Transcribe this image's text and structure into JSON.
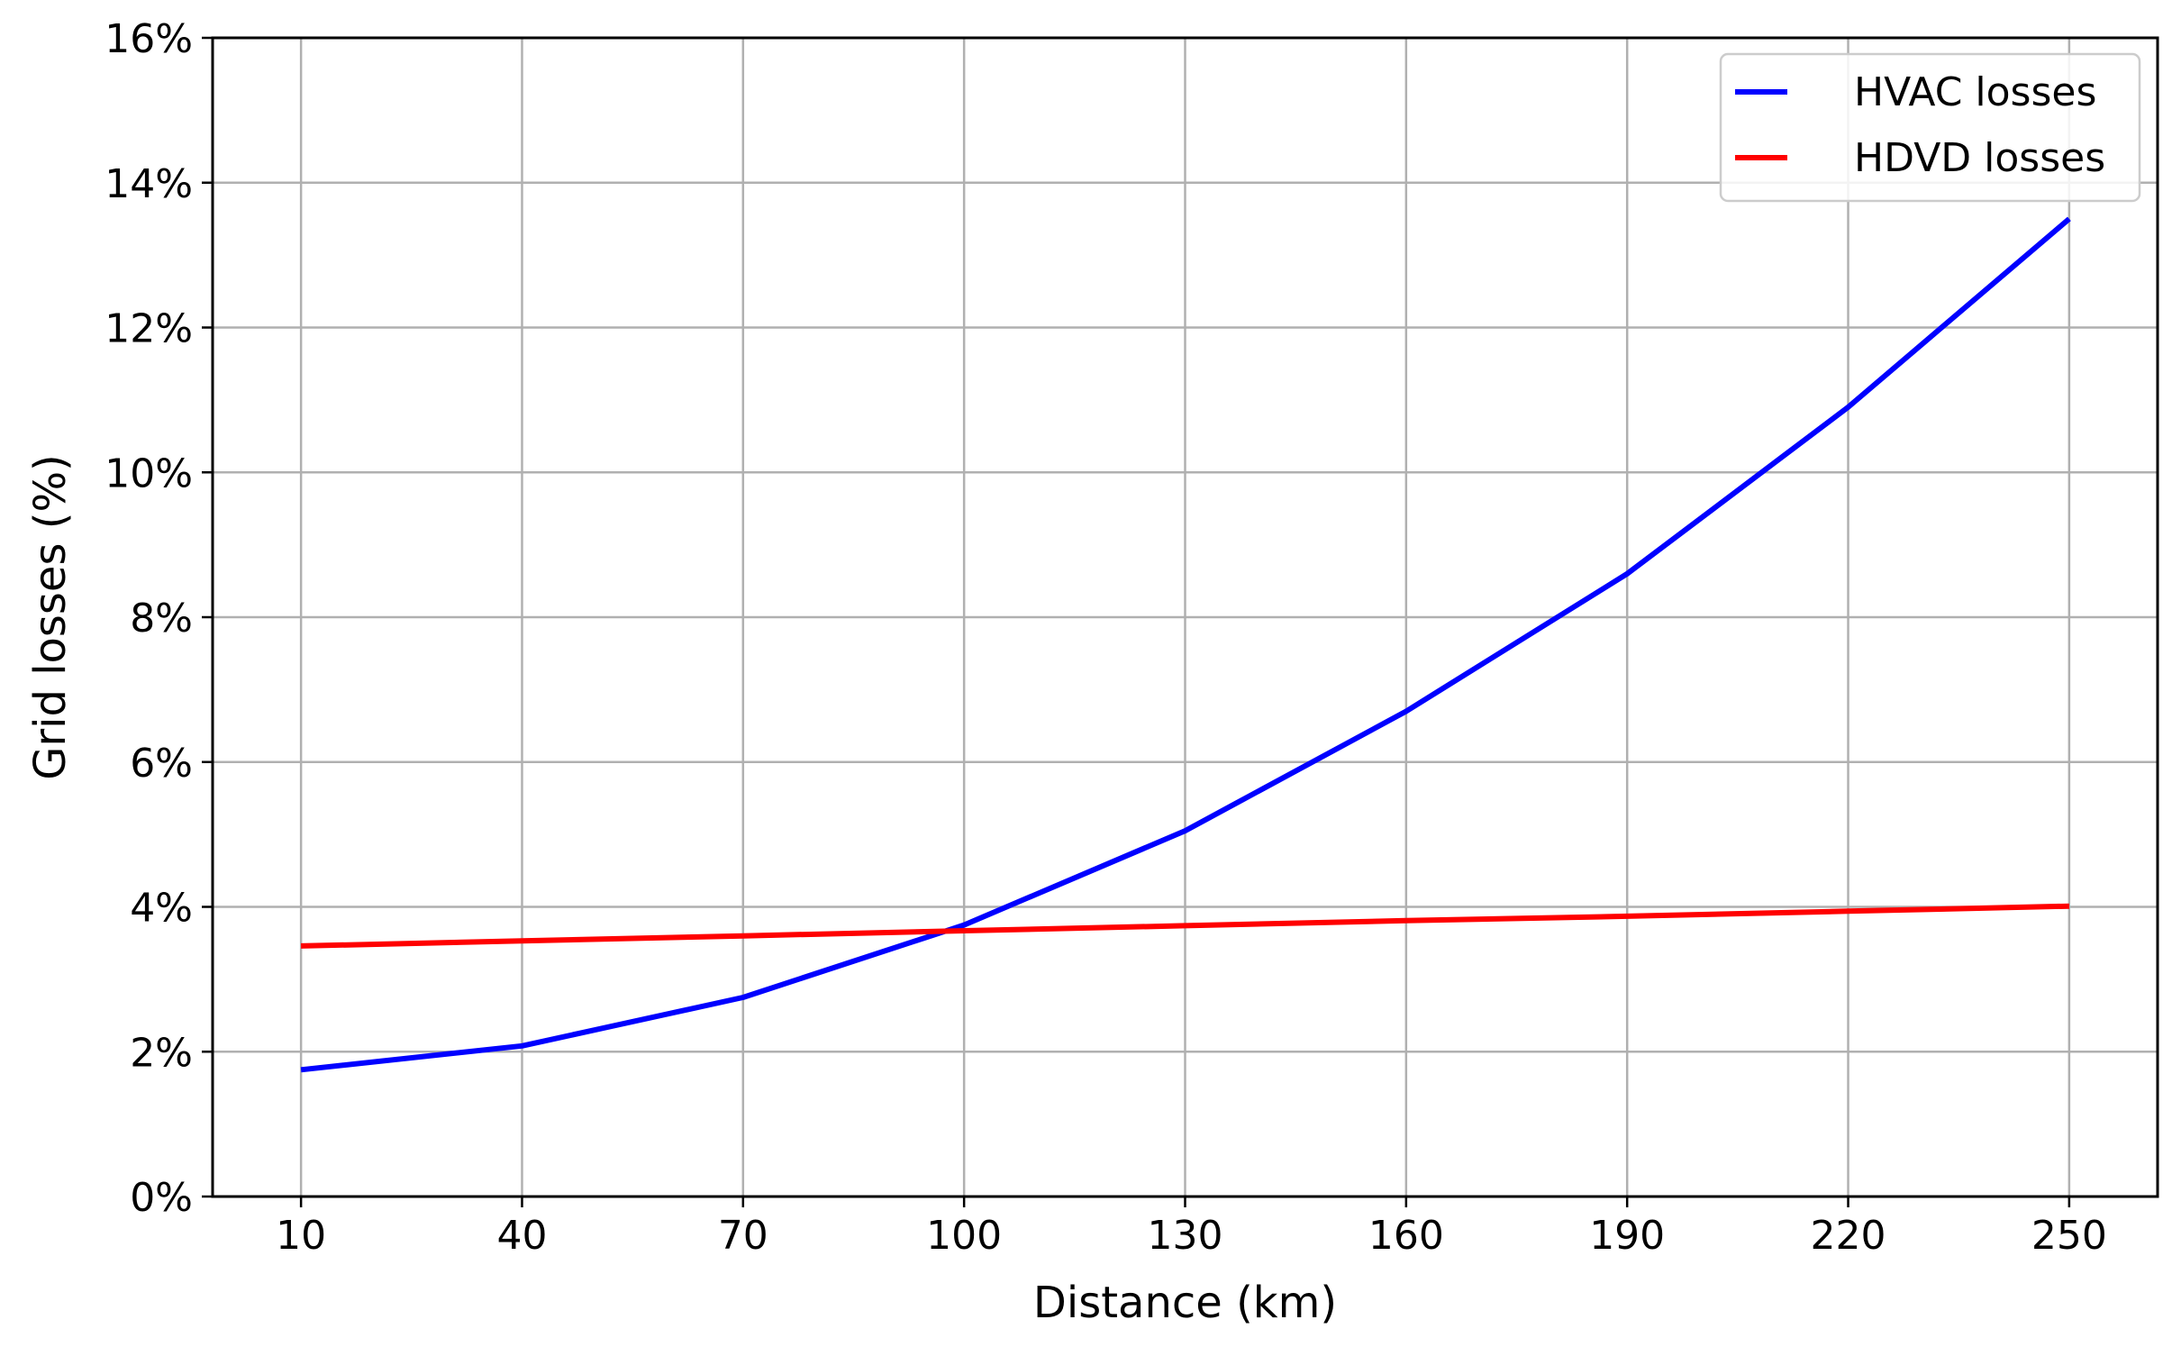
{
  "chart_data": {
    "type": "line",
    "title": "",
    "xlabel": "Distance (km)",
    "ylabel": "Grid losses (%)",
    "x": [
      10,
      40,
      70,
      100,
      130,
      160,
      190,
      220,
      250
    ],
    "x_tick_labels": [
      "10",
      "40",
      "70",
      "100",
      "130",
      "160",
      "190",
      "220",
      "250"
    ],
    "xlim": [
      -2,
      262
    ],
    "ylim": [
      0,
      16
    ],
    "y_ticks": [
      0,
      2,
      4,
      6,
      8,
      10,
      12,
      14,
      16
    ],
    "y_tick_labels": [
      "0%",
      "2%",
      "4%",
      "6%",
      "8%",
      "10%",
      "12%",
      "14%",
      "16%"
    ],
    "grid": true,
    "legend_position": "top-right",
    "series": [
      {
        "name": "HVAC losses",
        "color": "#0000ff",
        "values": [
          1.75,
          2.08,
          2.75,
          3.75,
          5.05,
          6.7,
          8.6,
          10.9,
          13.5
        ]
      },
      {
        "name": "HDVD losses",
        "color": "#ff0000",
        "values": [
          3.46,
          3.53,
          3.6,
          3.67,
          3.74,
          3.81,
          3.87,
          3.94,
          4.01
        ]
      }
    ]
  }
}
